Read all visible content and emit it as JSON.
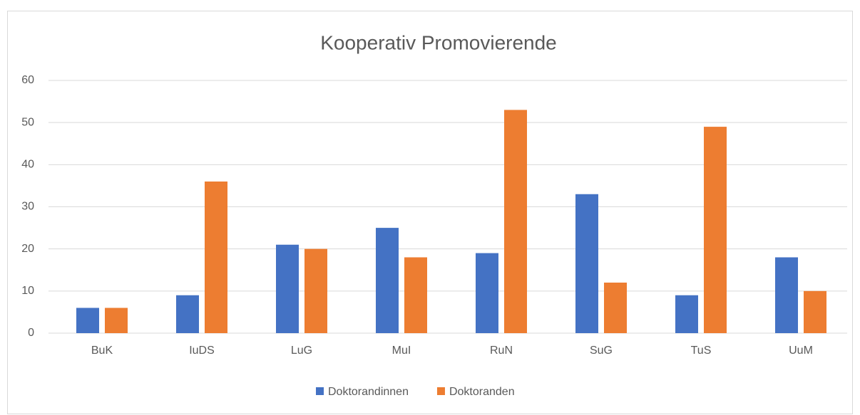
{
  "chart_data": {
    "type": "bar",
    "title": "Kooperativ Promovierende",
    "categories": [
      "BuK",
      "IuDS",
      "LuG",
      "MuI",
      "RuN",
      "SuG",
      "TuS",
      "UuM"
    ],
    "series": [
      {
        "name": "Doktorandinnen",
        "color": "#4472c4",
        "values": [
          6,
          9,
          21,
          25,
          19,
          33,
          9,
          18
        ]
      },
      {
        "name": "Doktoranden",
        "color": "#ed7d31",
        "values": [
          6,
          36,
          20,
          18,
          53,
          12,
          49,
          10
        ]
      }
    ],
    "ylim": [
      0,
      60
    ],
    "yticks": [
      0,
      10,
      20,
      30,
      40,
      50,
      60
    ],
    "grid": true,
    "legend": "bottom"
  }
}
